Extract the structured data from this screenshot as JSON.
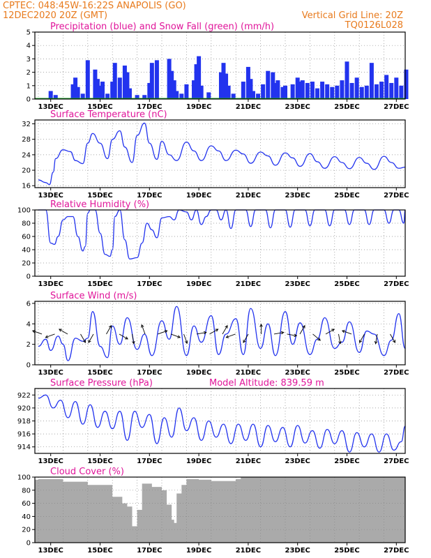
{
  "header": {
    "left_line1": "CPTEC:    048:45W-16:22S   ANAPOLIS (GO)",
    "left_line2": "12DEC2020 20Z (GMT)",
    "right_line1": "Vertical Grid Line: 20Z",
    "right_line2": "TQ0126L028"
  },
  "x_ticks": [
    "13DEC",
    "15DEC",
    "17DEC",
    "19DEC",
    "21DEC",
    "23DEC",
    "25DEC",
    "27DEC"
  ],
  "colors": {
    "header": "#e87a1c",
    "title": "#e0159a",
    "line": "#2233ee",
    "precip": "#2233ee",
    "snow": "#1aa52a",
    "cloud": "#aaaaaa",
    "grid": "#888888"
  },
  "chart_data": [
    {
      "type": "bar",
      "title": "Precipitation (blue) and Snow Fall (green) (mm/h)",
      "ylim": [
        0,
        5
      ],
      "yticks": [
        "0",
        "1",
        "2",
        "3",
        "4",
        "5"
      ],
      "x_days": [
        0.5,
        0.7,
        1.4,
        1.5,
        1.6,
        1.8,
        2.0,
        2.3,
        2.4,
        2.5,
        2.6,
        2.8,
        3.0,
        3.1,
        3.3,
        3.5,
        3.6,
        3.7,
        4.0,
        4.3,
        4.5,
        4.6,
        4.8,
        5.3,
        5.4,
        5.5,
        5.6,
        5.8,
        6.0,
        6.3,
        6.4,
        6.5,
        6.6,
        6.9,
        7.4,
        7.5,
        7.6,
        7.7,
        7.9,
        8.3,
        8.5,
        8.6,
        8.7,
        8.9,
        9.1,
        9.3,
        9.5,
        9.6,
        9.7,
        9.9,
        10.0,
        10.3,
        10.5,
        10.6,
        10.7,
        10.9,
        11.1,
        11.3,
        11.5,
        11.7,
        11.9,
        12.1,
        12.3,
        12.5,
        12.7,
        12.9,
        13.1,
        13.3,
        13.5,
        13.7,
        13.9,
        14.1,
        14.3,
        14.5,
        14.7,
        14.9
      ],
      "values": [
        0.6,
        0.3,
        1.1,
        1.6,
        0.9,
        0.4,
        2.9,
        2.2,
        1.5,
        1.0,
        1.3,
        0.4,
        1.3,
        2.7,
        1.6,
        2.5,
        2.0,
        0.8,
        0.3,
        0.3,
        1.2,
        2.7,
        2.9,
        3.0,
        2.1,
        1.4,
        0.6,
        0.4,
        1.1,
        1.4,
        2.6,
        3.2,
        1.0,
        0.5,
        2.0,
        2.7,
        1.9,
        1.0,
        0.4,
        1.3,
        2.4,
        1.5,
        0.6,
        0.4,
        1.1,
        2.1,
        2.0,
        1.2,
        1.4,
        0.9,
        1.0,
        1.1,
        1.6,
        1.3,
        1.4,
        1.2,
        1.3,
        0.8,
        1.3,
        1.1,
        0.9,
        1.0,
        1.4,
        2.8,
        1.2,
        1.6,
        0.9,
        1.0,
        2.7,
        1.1,
        1.3,
        1.8,
        1.2,
        1.6,
        1.0,
        2.2
      ],
      "snow_values": "all 0"
    },
    {
      "type": "line",
      "title": "Surface Temperature (nC)",
      "ylim": [
        15.5,
        33
      ],
      "yticks": [
        "16",
        "20",
        "24",
        "28",
        "32"
      ],
      "x_days": [
        0,
        0.3,
        0.45,
        0.6,
        0.7,
        1.0,
        1.3,
        1.5,
        1.8,
        2.0,
        2.2,
        2.5,
        2.8,
        3.0,
        3.3,
        3.5,
        3.8,
        4.0,
        4.3,
        4.5,
        4.8,
        5.0,
        5.3,
        5.6,
        6.0,
        6.3,
        6.6,
        7.0,
        7.3,
        7.6,
        8.0,
        8.3,
        8.6,
        9.0,
        9.3,
        9.6,
        10.0,
        10.3,
        10.6,
        11.0,
        11.3,
        11.6,
        12.0,
        12.3,
        12.6,
        13.0,
        13.3,
        13.6,
        14.0,
        14.3,
        14.6,
        15.0
      ],
      "values": [
        17.5,
        16.8,
        16.3,
        19.5,
        23.0,
        25.3,
        24.8,
        22.5,
        21.7,
        27.0,
        29.5,
        27.0,
        23.0,
        28.0,
        30.2,
        26.0,
        22.0,
        29.0,
        32.2,
        27.0,
        22.8,
        27.5,
        24.0,
        22.5,
        27.3,
        25.0,
        22.5,
        26.3,
        25.0,
        22.5,
        25.2,
        24.2,
        21.8,
        24.7,
        23.7,
        21.3,
        24.5,
        23.2,
        21.0,
        24.3,
        22.2,
        20.5,
        23.5,
        22.0,
        20.4,
        23.3,
        21.8,
        20.2,
        23.6,
        22.0,
        20.5,
        20.8
      ]
    },
    {
      "type": "line",
      "title": "Relative Humidity (%)",
      "ylim": [
        0,
        100
      ],
      "yticks": [
        "0",
        "20",
        "40",
        "60",
        "80",
        "100"
      ],
      "x_days": [
        0,
        0.3,
        0.5,
        0.65,
        0.8,
        1.0,
        1.2,
        1.4,
        1.6,
        1.8,
        1.9,
        2.0,
        2.1,
        2.3,
        2.5,
        2.7,
        2.9,
        3.0,
        3.1,
        3.3,
        3.5,
        3.7,
        4.0,
        4.2,
        4.4,
        4.6,
        4.8,
        5.0,
        5.3,
        5.5,
        5.7,
        6.0,
        6.2,
        6.4,
        6.6,
        6.8,
        7.0,
        7.2,
        7.4,
        7.6,
        7.8,
        8.0,
        8.2,
        8.4,
        8.6,
        8.8,
        9.0,
        9.2,
        9.4,
        9.6,
        9.8,
        10.0,
        10.2,
        10.4,
        10.6,
        10.8,
        11.0,
        11.2,
        11.4,
        11.6,
        11.8,
        12.0,
        12.2,
        12.4,
        12.6,
        12.8,
        13.0,
        13.2,
        13.4,
        13.6,
        13.8,
        14.0,
        14.2,
        14.4,
        14.6,
        14.8,
        15.0
      ],
      "values": [
        100,
        100,
        50,
        48,
        60,
        85,
        90,
        90,
        60,
        38,
        45,
        95,
        100,
        100,
        65,
        33,
        30,
        40,
        90,
        100,
        55,
        26,
        28,
        50,
        80,
        70,
        58,
        88,
        90,
        85,
        100,
        97,
        85,
        100,
        78,
        90,
        100,
        100,
        85,
        100,
        72,
        100,
        100,
        100,
        75,
        100,
        100,
        100,
        73,
        100,
        100,
        100,
        74,
        100,
        100,
        100,
        76,
        100,
        100,
        100,
        76,
        100,
        100,
        100,
        78,
        100,
        100,
        100,
        78,
        100,
        100,
        100,
        80,
        100,
        100,
        80,
        100
      ]
    },
    {
      "type": "line",
      "title": "Surface Wind (m/s)",
      "ylim": [
        0,
        6.2
      ],
      "yticks": [
        "0",
        "2",
        "4",
        "6"
      ],
      "x_days": [
        0,
        0.3,
        0.5,
        0.8,
        1.0,
        1.2,
        1.5,
        1.8,
        2.0,
        2.2,
        2.5,
        2.8,
        3.0,
        3.3,
        3.6,
        4.0,
        4.3,
        4.6,
        5.0,
        5.3,
        5.6,
        6.0,
        6.3,
        6.6,
        7.0,
        7.3,
        7.6,
        8.0,
        8.3,
        8.6,
        9.0,
        9.3,
        9.6,
        10.0,
        10.3,
        10.6,
        11.0,
        11.3,
        11.6,
        12.0,
        12.3,
        12.6,
        13.0,
        13.3,
        13.6,
        14.0,
        14.3,
        14.6,
        15.0
      ],
      "values": [
        1.8,
        2.5,
        1.4,
        2.8,
        2.0,
        0.4,
        2.6,
        2.3,
        2.6,
        5.2,
        1.8,
        0.7,
        3.8,
        2.0,
        4.6,
        1.5,
        3.0,
        0.9,
        4.3,
        2.5,
        5.7,
        0.9,
        3.8,
        2.2,
        4.8,
        1.0,
        3.0,
        4.5,
        1.0,
        5.5,
        1.6,
        4.0,
        0.9,
        5.2,
        2.0,
        4.1,
        1.0,
        2.5,
        4.6,
        1.6,
        2.2,
        4.2,
        1.2,
        3.3,
        3.0,
        0.9,
        2.4,
        5.0,
        1.6
      ],
      "arrows": "wind direction vectors along 3 m/s level"
    },
    {
      "type": "line",
      "title": "Surface Pressure (hPa)",
      "subtitle": "Model Altitude: 839.59  m",
      "ylim": [
        913,
        923
      ],
      "yticks": [
        "914",
        "916",
        "918",
        "920",
        "922"
      ],
      "x_days": [
        0,
        0.3,
        0.6,
        0.9,
        1.2,
        1.5,
        1.8,
        2.1,
        2.4,
        2.7,
        3.0,
        3.3,
        3.6,
        3.9,
        4.2,
        4.5,
        4.8,
        5.1,
        5.4,
        5.7,
        6.0,
        6.3,
        6.6,
        6.9,
        7.2,
        7.5,
        7.8,
        8.1,
        8.4,
        8.7,
        9.0,
        9.3,
        9.6,
        9.9,
        10.2,
        10.5,
        10.8,
        11.1,
        11.4,
        11.7,
        12.0,
        12.3,
        12.6,
        12.9,
        13.2,
        13.5,
        13.8,
        14.1,
        14.4,
        14.7,
        15.0
      ],
      "values": [
        921.5,
        922.0,
        920.0,
        921.2,
        918.5,
        921.0,
        917.5,
        920.5,
        917.0,
        919.5,
        916.8,
        919.5,
        915.0,
        919.5,
        917.0,
        919.0,
        914.5,
        918.5,
        915.5,
        920.0,
        916.5,
        918.5,
        915.0,
        918.0,
        915.5,
        917.5,
        914.5,
        917.5,
        915.0,
        917.5,
        914.0,
        917.3,
        914.8,
        917.0,
        914.0,
        917.3,
        914.6,
        916.5,
        913.8,
        916.7,
        914.5,
        916.5,
        913.2,
        916.2,
        914.0,
        916.0,
        913.2,
        916.0,
        913.5,
        914.8,
        917.2
      ]
    },
    {
      "type": "bar",
      "title": "Cloud Cover (%)",
      "ylim": [
        0,
        100
      ],
      "yticks": [
        "0",
        "20",
        "40",
        "60",
        "80",
        "100"
      ],
      "x_days": [
        0,
        1,
        2,
        3,
        3.4,
        3.6,
        3.8,
        4.0,
        4.2,
        4.6,
        5.0,
        5.2,
        5.4,
        5.5,
        5.6,
        5.8,
        6.0,
        6.5,
        7.0,
        8.0,
        8.2,
        9,
        10,
        11,
        12,
        13,
        14,
        15
      ],
      "values": [
        96,
        97,
        93,
        88,
        70,
        60,
        55,
        25,
        50,
        90,
        85,
        80,
        58,
        35,
        30,
        75,
        88,
        97,
        96,
        94,
        97,
        100,
        100,
        100,
        100,
        100,
        100,
        100
      ]
    }
  ]
}
